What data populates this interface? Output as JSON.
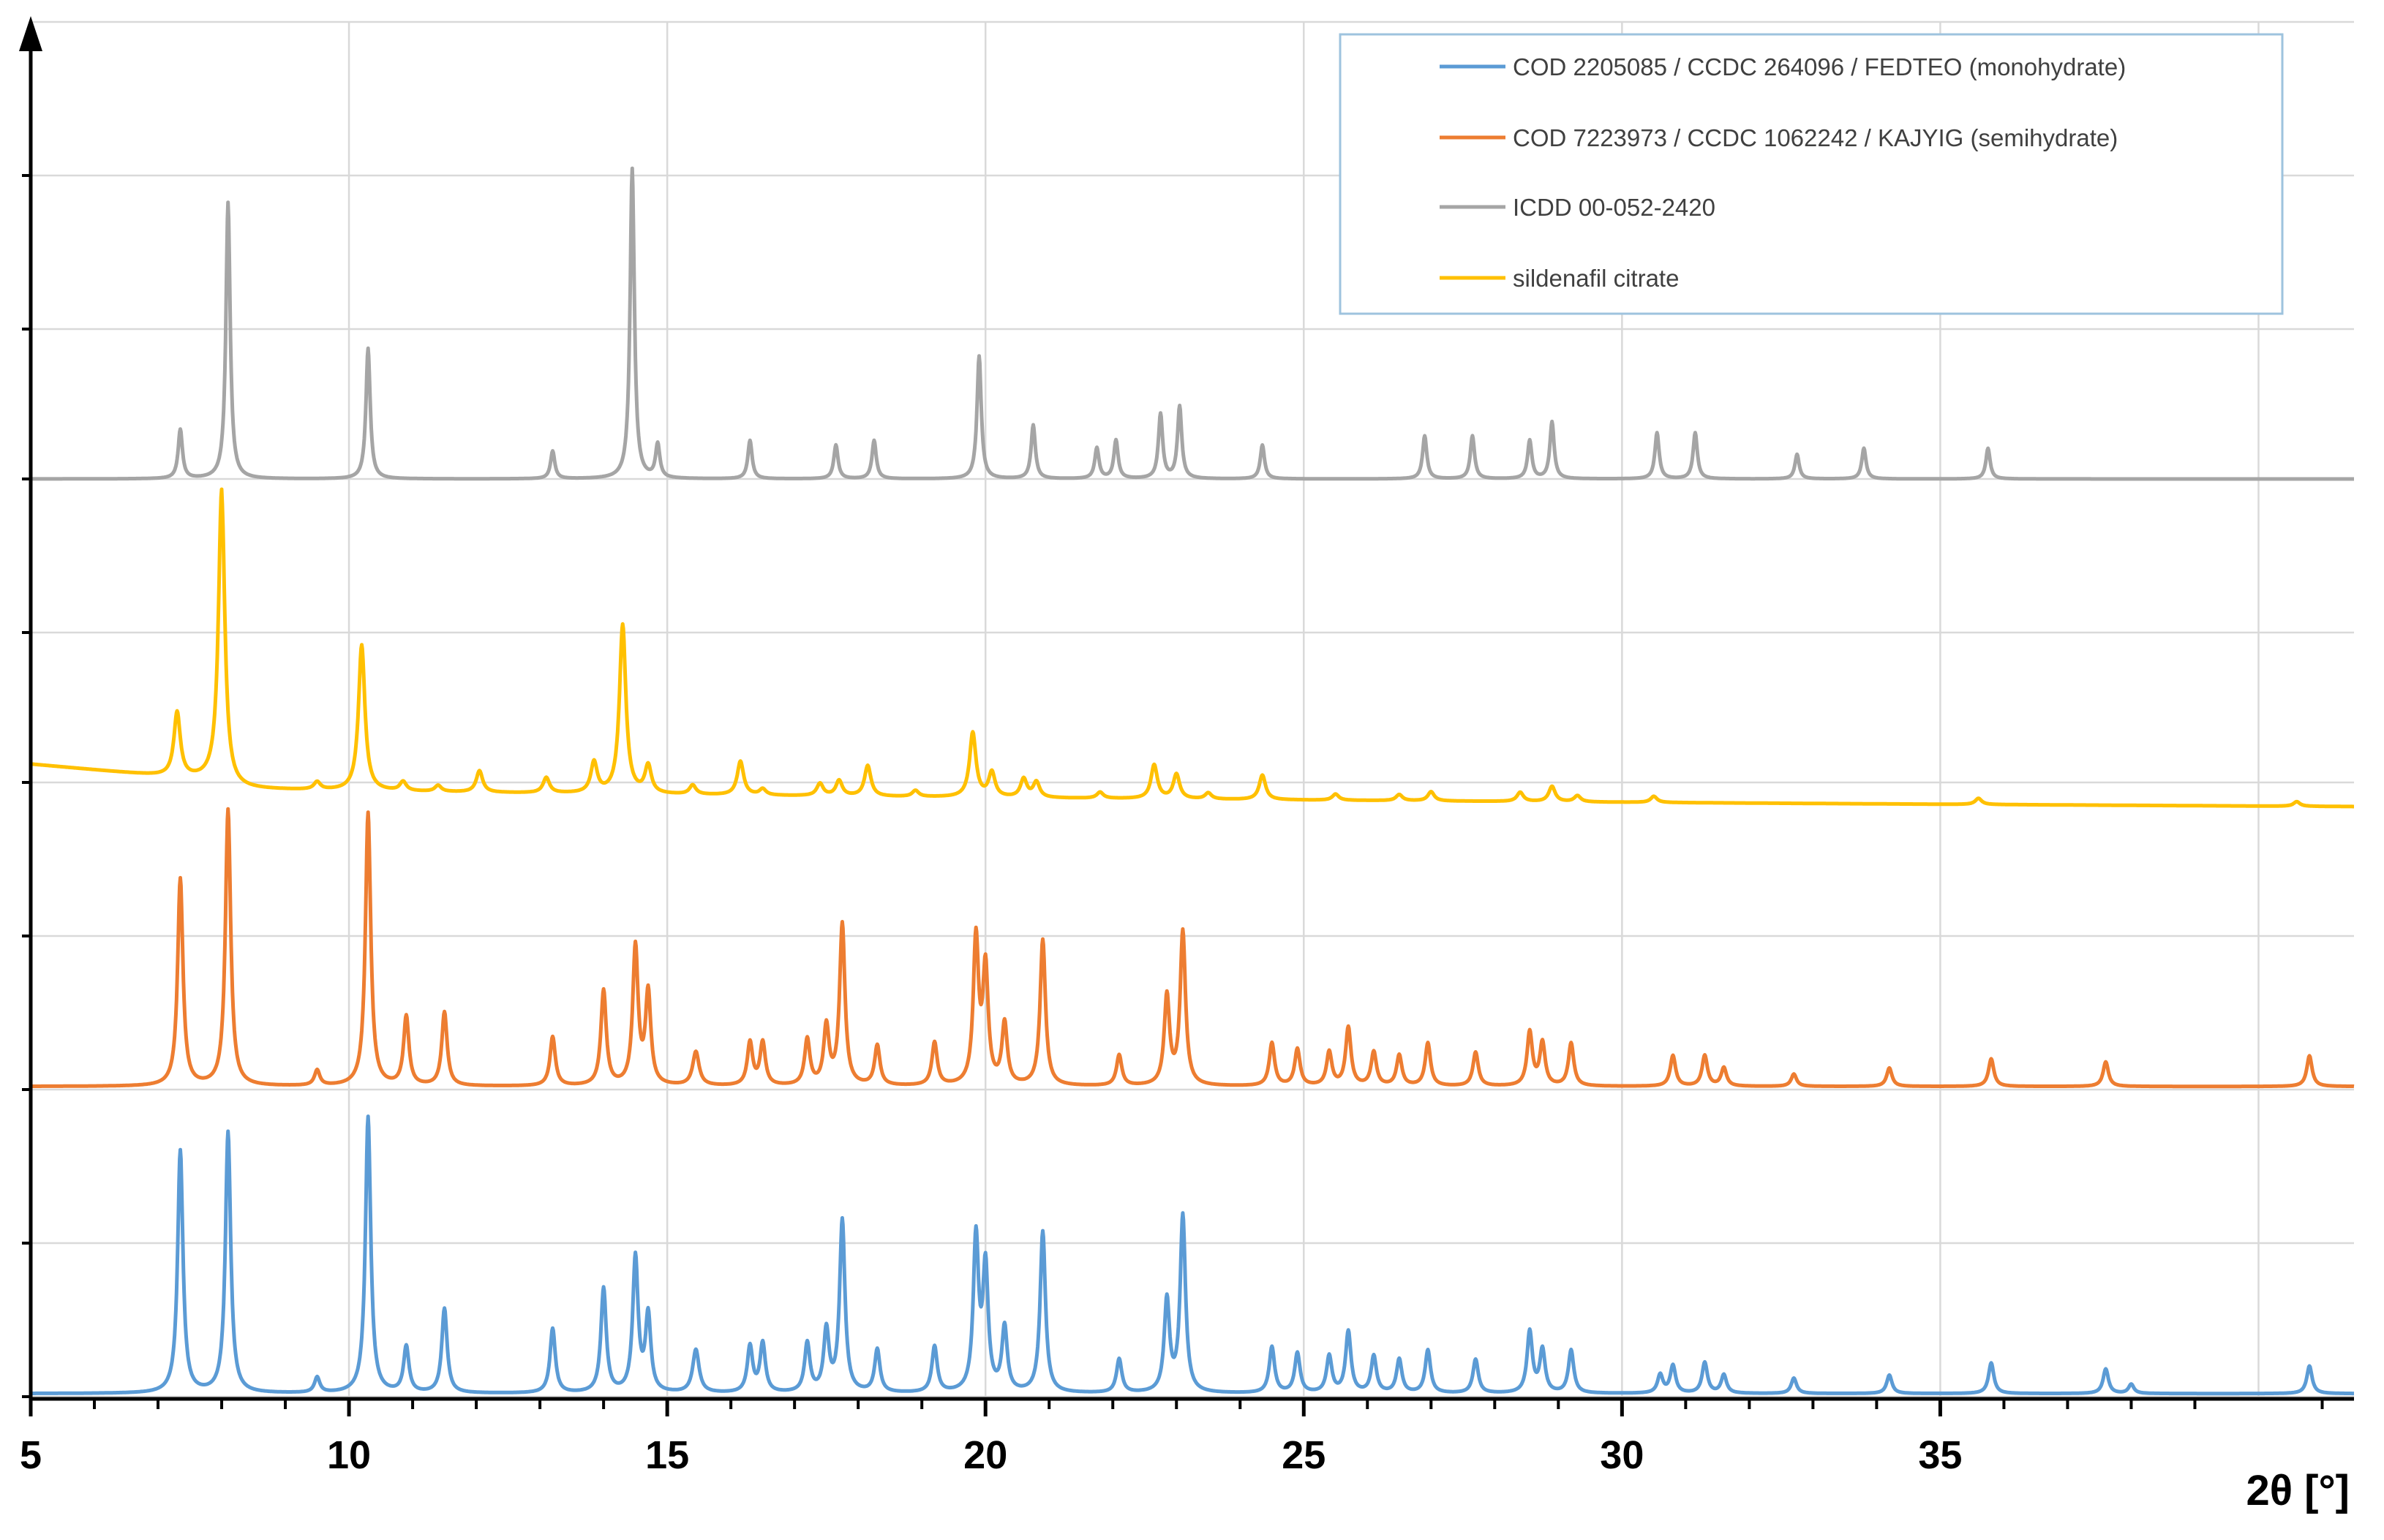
{
  "chart_data": {
    "type": "line",
    "title": "",
    "xlabel": "2θ [°]",
    "ylabel": "",
    "xlim": [
      5,
      41.5
    ],
    "x_ticks": [
      5,
      10,
      15,
      20,
      25,
      30,
      35
    ],
    "grid": true,
    "legend_position": "top-right",
    "series": [
      {
        "name": "COD 2205085 / CCDC 264096 / FEDTEO (monohydrate)",
        "color": "#5b9bd5",
        "baseline": 0.02,
        "peaks": [
          [
            7.35,
            1.58,
            0.05
          ],
          [
            8.1,
            1.7,
            0.05
          ],
          [
            9.5,
            0.1,
            0.05
          ],
          [
            10.3,
            1.8,
            0.05
          ],
          [
            10.9,
            0.3,
            0.05
          ],
          [
            11.5,
            0.55,
            0.05
          ],
          [
            13.2,
            0.42,
            0.05
          ],
          [
            14.0,
            0.68,
            0.05
          ],
          [
            14.5,
            0.88,
            0.05
          ],
          [
            14.7,
            0.5,
            0.05
          ],
          [
            15.45,
            0.28,
            0.06
          ],
          [
            16.3,
            0.3,
            0.05
          ],
          [
            16.5,
            0.32,
            0.05
          ],
          [
            17.2,
            0.32,
            0.05
          ],
          [
            17.5,
            0.4,
            0.05
          ],
          [
            17.75,
            1.12,
            0.05
          ],
          [
            18.3,
            0.28,
            0.05
          ],
          [
            19.2,
            0.3,
            0.05
          ],
          [
            19.85,
            1.0,
            0.05
          ],
          [
            20.0,
            0.8,
            0.05
          ],
          [
            20.3,
            0.42,
            0.05
          ],
          [
            20.9,
            1.05,
            0.05
          ],
          [
            22.1,
            0.22,
            0.05
          ],
          [
            22.85,
            0.6,
            0.05
          ],
          [
            23.1,
            1.15,
            0.05
          ],
          [
            24.5,
            0.3,
            0.05
          ],
          [
            24.9,
            0.26,
            0.05
          ],
          [
            25.4,
            0.24,
            0.05
          ],
          [
            25.7,
            0.4,
            0.05
          ],
          [
            26.1,
            0.24,
            0.05
          ],
          [
            26.5,
            0.22,
            0.05
          ],
          [
            26.95,
            0.28,
            0.05
          ],
          [
            27.7,
            0.22,
            0.05
          ],
          [
            28.55,
            0.4,
            0.05
          ],
          [
            28.75,
            0.28,
            0.05
          ],
          [
            29.2,
            0.28,
            0.05
          ],
          [
            30.6,
            0.12,
            0.05
          ],
          [
            30.8,
            0.18,
            0.05
          ],
          [
            31.3,
            0.2,
            0.05
          ],
          [
            31.6,
            0.12,
            0.05
          ],
          [
            32.7,
            0.1,
            0.05
          ],
          [
            34.2,
            0.12,
            0.05
          ],
          [
            35.8,
            0.2,
            0.05
          ],
          [
            37.6,
            0.16,
            0.05
          ],
          [
            38.0,
            0.06,
            0.05
          ],
          [
            40.8,
            0.18,
            0.05
          ]
        ]
      },
      {
        "name": "COD 7223973 / CCDC 1062242 / KAJYIG (semihydrate)",
        "color": "#ed7d31",
        "baseline": 0.02,
        "peaks": [
          [
            7.35,
            1.35,
            0.05
          ],
          [
            8.1,
            1.8,
            0.05
          ],
          [
            9.5,
            0.1,
            0.05
          ],
          [
            10.3,
            1.78,
            0.05
          ],
          [
            10.9,
            0.45,
            0.05
          ],
          [
            11.5,
            0.48,
            0.05
          ],
          [
            13.2,
            0.32,
            0.05
          ],
          [
            14.0,
            0.62,
            0.05
          ],
          [
            14.5,
            0.9,
            0.05
          ],
          [
            14.7,
            0.6,
            0.05
          ],
          [
            15.45,
            0.22,
            0.06
          ],
          [
            16.3,
            0.28,
            0.05
          ],
          [
            16.5,
            0.28,
            0.05
          ],
          [
            17.2,
            0.3,
            0.05
          ],
          [
            17.5,
            0.38,
            0.05
          ],
          [
            17.75,
            1.05,
            0.05
          ],
          [
            18.3,
            0.26,
            0.05
          ],
          [
            19.2,
            0.28,
            0.05
          ],
          [
            19.85,
            0.95,
            0.05
          ],
          [
            20.0,
            0.75,
            0.05
          ],
          [
            20.3,
            0.4,
            0.05
          ],
          [
            20.9,
            0.95,
            0.05
          ],
          [
            22.1,
            0.2,
            0.05
          ],
          [
            22.85,
            0.58,
            0.05
          ],
          [
            23.1,
            1.0,
            0.05
          ],
          [
            24.5,
            0.28,
            0.05
          ],
          [
            24.9,
            0.24,
            0.05
          ],
          [
            25.4,
            0.22,
            0.05
          ],
          [
            25.7,
            0.38,
            0.05
          ],
          [
            26.1,
            0.22,
            0.05
          ],
          [
            26.5,
            0.2,
            0.05
          ],
          [
            26.95,
            0.28,
            0.05
          ],
          [
            27.7,
            0.22,
            0.05
          ],
          [
            28.55,
            0.35,
            0.05
          ],
          [
            28.75,
            0.28,
            0.05
          ],
          [
            29.2,
            0.28,
            0.05
          ],
          [
            30.8,
            0.2,
            0.05
          ],
          [
            31.3,
            0.2,
            0.05
          ],
          [
            31.6,
            0.12,
            0.05
          ],
          [
            32.7,
            0.08,
            0.05
          ],
          [
            34.2,
            0.12,
            0.05
          ],
          [
            35.8,
            0.18,
            0.05
          ],
          [
            37.6,
            0.16,
            0.05
          ],
          [
            40.8,
            0.2,
            0.05
          ]
        ]
      },
      {
        "name": "ICDD 00-052-2420",
        "color": "#a5a5a5",
        "baseline": 0.0,
        "peaks": [
          [
            7.35,
            0.32,
            0.04
          ],
          [
            8.1,
            1.8,
            0.04
          ],
          [
            10.3,
            0.85,
            0.04
          ],
          [
            13.2,
            0.18,
            0.04
          ],
          [
            14.45,
            2.02,
            0.04
          ],
          [
            14.85,
            0.22,
            0.04
          ],
          [
            16.3,
            0.25,
            0.04
          ],
          [
            17.65,
            0.22,
            0.04
          ],
          [
            18.25,
            0.25,
            0.04
          ],
          [
            19.9,
            0.8,
            0.04
          ],
          [
            20.75,
            0.35,
            0.04
          ],
          [
            21.75,
            0.2,
            0.04
          ],
          [
            22.05,
            0.25,
            0.04
          ],
          [
            22.75,
            0.42,
            0.04
          ],
          [
            23.05,
            0.47,
            0.04
          ],
          [
            24.35,
            0.22,
            0.04
          ],
          [
            26.9,
            0.28,
            0.04
          ],
          [
            27.65,
            0.28,
            0.04
          ],
          [
            28.55,
            0.25,
            0.04
          ],
          [
            28.9,
            0.37,
            0.04
          ],
          [
            30.55,
            0.3,
            0.04
          ],
          [
            31.15,
            0.3,
            0.04
          ],
          [
            32.75,
            0.16,
            0.04
          ],
          [
            33.8,
            0.2,
            0.04
          ],
          [
            35.75,
            0.2,
            0.04
          ]
        ]
      },
      {
        "name": "sildenafil citrate",
        "color": "#ffc000",
        "baseline": 0.0,
        "peaks": [
          [
            7.3,
            0.42,
            0.06
          ],
          [
            8.0,
            1.9,
            0.06
          ],
          [
            9.5,
            0.05,
            0.06
          ],
          [
            10.2,
            0.95,
            0.06
          ],
          [
            10.85,
            0.06,
            0.06
          ],
          [
            11.4,
            0.04,
            0.06
          ],
          [
            12.05,
            0.14,
            0.06
          ],
          [
            13.1,
            0.1,
            0.06
          ],
          [
            13.85,
            0.2,
            0.06
          ],
          [
            14.3,
            1.1,
            0.06
          ],
          [
            14.7,
            0.18,
            0.06
          ],
          [
            15.4,
            0.06,
            0.06
          ],
          [
            16.15,
            0.22,
            0.06
          ],
          [
            16.5,
            0.04,
            0.06
          ],
          [
            17.4,
            0.08,
            0.06
          ],
          [
            17.7,
            0.1,
            0.06
          ],
          [
            18.15,
            0.2,
            0.06
          ],
          [
            18.9,
            0.04,
            0.06
          ],
          [
            19.8,
            0.42,
            0.06
          ],
          [
            20.1,
            0.16,
            0.06
          ],
          [
            20.6,
            0.12,
            0.06
          ],
          [
            20.8,
            0.1,
            0.06
          ],
          [
            21.8,
            0.04,
            0.06
          ],
          [
            22.65,
            0.22,
            0.06
          ],
          [
            23.0,
            0.16,
            0.06
          ],
          [
            23.5,
            0.04,
            0.06
          ],
          [
            24.35,
            0.16,
            0.06
          ],
          [
            25.5,
            0.04,
            0.06
          ],
          [
            26.5,
            0.04,
            0.06
          ],
          [
            27.0,
            0.06,
            0.06
          ],
          [
            28.4,
            0.06,
            0.06
          ],
          [
            28.9,
            0.1,
            0.06
          ],
          [
            29.3,
            0.04,
            0.06
          ],
          [
            30.5,
            0.04,
            0.06
          ],
          [
            35.6,
            0.04,
            0.06
          ],
          [
            40.6,
            0.03,
            0.06
          ]
        ]
      }
    ]
  }
}
